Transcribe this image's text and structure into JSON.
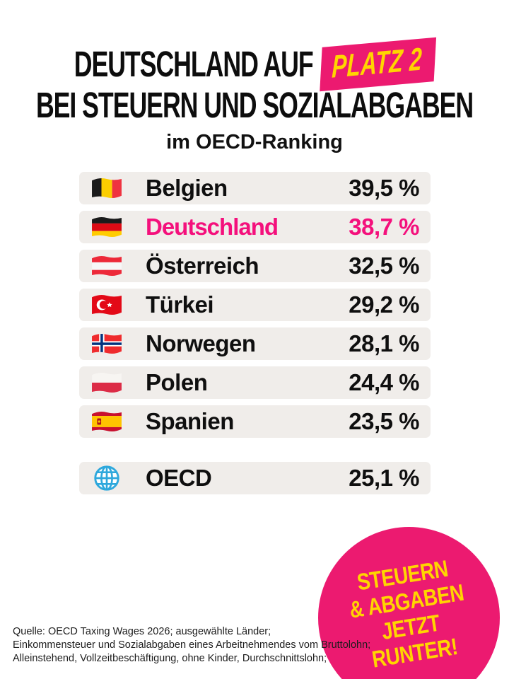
{
  "header": {
    "line1_prefix": "DEUTSCHLAND AUF",
    "platz_label": "PLATZ 2",
    "line2": "BEI STEUERN UND SOZIALABGABEN",
    "subtitle": "im OECD-Ranking"
  },
  "colors": {
    "accent_pink": "#EC1A70",
    "highlight_pink": "#F4107C",
    "accent_yellow": "#FFD500",
    "row_bg": "#F0EDEA"
  },
  "ranking": {
    "rows": [
      {
        "country": "Belgien",
        "value": "39,5 %",
        "flag": "belgium",
        "highlight": false
      },
      {
        "country": "Deutschland",
        "value": "38,7 %",
        "flag": "germany",
        "highlight": true
      },
      {
        "country": "Österreich",
        "value": "32,5 %",
        "flag": "austria",
        "highlight": false
      },
      {
        "country": "Türkei",
        "value": "29,2 %",
        "flag": "turkey",
        "highlight": false
      },
      {
        "country": "Norwegen",
        "value": "28,1 %",
        "flag": "norway",
        "highlight": false
      },
      {
        "country": "Polen",
        "value": "24,4 %",
        "flag": "poland",
        "highlight": false
      },
      {
        "country": "Spanien",
        "value": "23,5 %",
        "flag": "spain",
        "highlight": false
      }
    ],
    "average": {
      "country": "OECD",
      "value": "25,1 %",
      "flag": "globe",
      "highlight": false
    }
  },
  "badge": {
    "lines": [
      "STEUERN",
      "& ABGABEN",
      "JETZT",
      "RUNTER!"
    ]
  },
  "source": {
    "lines": [
      "Quelle: OECD Taxing Wages 2026; ausgewählte Länder;",
      "Einkommensteuer und Sozialabgaben eines Arbeitnehmendes vom Bruttolohn;",
      "Alleinstehend, Vollzeitbeschäftigung, ohne Kinder, Durchschnittslohn;"
    ]
  },
  "chart_data": {
    "type": "table",
    "title": "Deutschland auf Platz 2 bei Steuern und Sozialabgaben im OECD-Ranking",
    "categories": [
      "Belgien",
      "Deutschland",
      "Österreich",
      "Türkei",
      "Norwegen",
      "Polen",
      "Spanien",
      "OECD"
    ],
    "values": [
      39.5,
      38.7,
      32.5,
      29.2,
      28.1,
      24.4,
      23.5,
      25.1
    ],
    "unit": "%",
    "highlighted_category": "Deutschland",
    "note": "OECD row is the average, visually separated from the country rows"
  }
}
